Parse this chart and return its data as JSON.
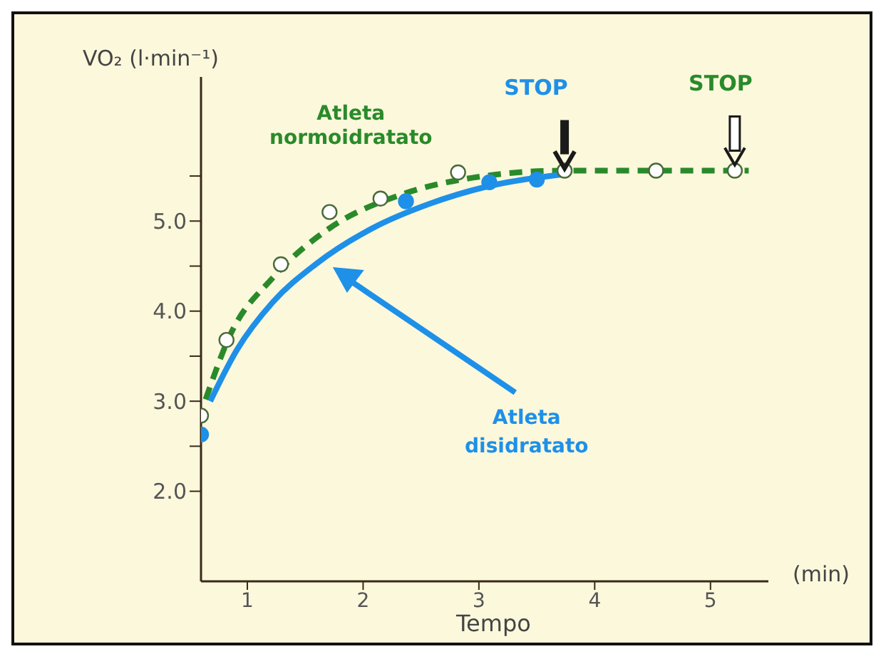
{
  "chart_data": {
    "type": "line",
    "xlabel": "Tempo",
    "ylabel": "VO₂ (l·min⁻¹)",
    "xlim": [
      0.6,
      5.5
    ],
    "ylim": [
      1.0,
      6.6
    ],
    "xticks": [
      1,
      2,
      3,
      4,
      5
    ],
    "yticks": [
      {
        "value": 2,
        "label": "2.0"
      },
      {
        "value": 2.5,
        "label": null
      },
      {
        "value": 3,
        "label": "3.0"
      },
      {
        "value": 3.5,
        "label": null
      },
      {
        "value": 4,
        "label": "4.0"
      },
      {
        "value": 4.5,
        "label": null
      },
      {
        "value": 5,
        "label": "5.0"
      },
      {
        "value": 5.5,
        "label": null
      }
    ],
    "grid": false,
    "legend": false,
    "series": [
      {
        "name": "Atleta normoidratato",
        "line_style": "dashed",
        "marker": "none",
        "color": "#2a8a2a",
        "x": [
          0.64,
          0.85,
          1.22,
          1.71,
          2.32,
          2.94,
          3.74,
          5.33
        ],
        "values": [
          3.02,
          3.73,
          4.37,
          4.92,
          5.29,
          5.48,
          5.56,
          5.56
        ]
      },
      {
        "name": "Atleta disidratato",
        "line_style": "solid",
        "marker": "none",
        "color": "#1e90e8",
        "x": [
          0.68,
          0.91,
          1.22,
          1.59,
          2.08,
          2.57,
          3.06,
          3.74
        ],
        "values": [
          3.0,
          3.57,
          4.1,
          4.52,
          4.92,
          5.19,
          5.38,
          5.52
        ]
      },
      {
        "type": "scatter",
        "marker": "circle",
        "color": "#ffffff",
        "x": [
          0.6,
          0.82,
          1.29,
          1.71,
          2.15,
          2.82,
          3.74,
          4.53,
          5.21
        ],
        "values": [
          2.84,
          3.68,
          4.52,
          5.1,
          5.25,
          5.54,
          5.56,
          5.56,
          5.56
        ]
      },
      {
        "type": "scatter",
        "marker": "circle",
        "color": "#1e90e8",
        "x": [
          0.6,
          2.37,
          3.09,
          3.5
        ],
        "values": [
          2.63,
          5.22,
          5.43,
          5.46
        ]
      }
    ],
    "annotations": [
      "STOP",
      "STOP",
      "(min)"
    ]
  }
}
